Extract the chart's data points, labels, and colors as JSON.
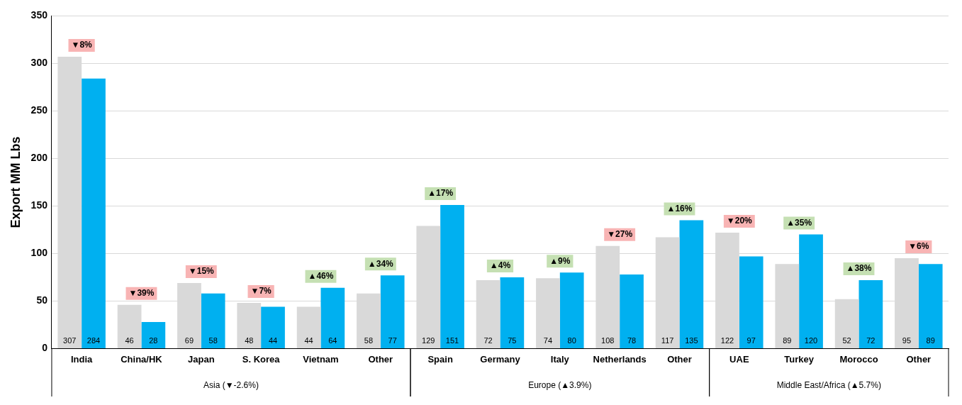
{
  "chart_data": {
    "type": "bar",
    "ylabel": "Export MM Lbs",
    "categories": [
      "India",
      "China/HK",
      "Japan",
      "S. Korea",
      "Vietnam",
      "Other",
      "Spain",
      "Germany",
      "Italy",
      "Netherlands",
      "Other",
      "UAE",
      "Turkey",
      "Morocco",
      "Other"
    ],
    "series": [
      {
        "color": "#d9d9d9",
        "values": [
          307,
          46,
          69,
          48,
          44,
          58,
          129,
          72,
          74,
          108,
          117,
          122,
          89,
          52,
          95
        ]
      },
      {
        "color": "#00b0f0",
        "values": [
          284,
          28,
          58,
          44,
          64,
          77,
          151,
          75,
          80,
          78,
          135,
          97,
          120,
          72,
          89
        ]
      }
    ],
    "ylim": [
      0,
      350
    ],
    "yticks": [
      0,
      50,
      100,
      150,
      200,
      250,
      300,
      350
    ],
    "grid": "y",
    "data_labels": true,
    "annotations": [
      "Asia (▼-2.6%)",
      "Europe (▲3.9%)",
      "Middle East/Africa (▲5.7%)",
      "▼8%",
      "▼39%",
      "▼15%",
      "▼7%",
      "▲46%",
      "▲34%",
      "▲17%",
      "▲4%",
      "▲9%",
      "▼27%",
      "▲16%",
      "▼20%",
      "▲35%",
      "▲38%",
      "▼6%"
    ]
  }
}
